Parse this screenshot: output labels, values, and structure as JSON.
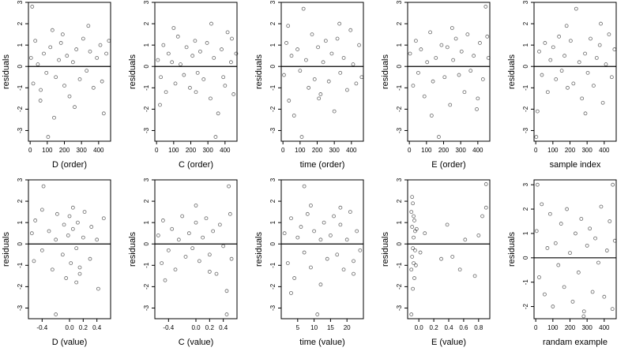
{
  "chart_data": [
    {
      "type": "scatter",
      "xlabel": "D (order)",
      "ylabel": "residuals",
      "xlim": [
        -10,
        470
      ],
      "ylim": [
        -3.5,
        3
      ],
      "x_ticks": [
        "0",
        "100",
        "200",
        "300",
        "400"
      ],
      "y_ticks": [
        "-3",
        "-2",
        "-1",
        "0",
        "1",
        "2",
        "3"
      ],
      "reference_line": 0,
      "x": [
        5,
        18,
        30,
        45,
        62,
        80,
        95,
        105,
        118,
        130,
        150,
        168,
        180,
        200,
        215,
        230,
        250,
        270,
        290,
        310,
        330,
        350,
        370,
        390,
        410,
        430,
        445,
        460,
        12,
        60,
        140,
        190,
        260,
        340,
        420
      ],
      "y": [
        0.4,
        -0.8,
        1.2,
        0.1,
        -1.1,
        0.6,
        -0.3,
        -3.3,
        0.9,
        1.7,
        -0.5,
        0.3,
        1.1,
        -0.9,
        0.5,
        -1.4,
        0.2,
        0.8,
        -0.6,
        1.3,
        -0.2,
        0.7,
        -1.0,
        0.4,
        1.0,
        -2.2,
        0.6,
        1.2,
        2.8,
        -1.6,
        -2.4,
        1.5,
        -1.9,
        1.9,
        -0.7
      ]
    },
    {
      "type": "scatter",
      "xlabel": "C (order)",
      "ylabel": "residuals",
      "xlim": [
        -10,
        470
      ],
      "ylim": [
        -3.5,
        3
      ],
      "x_ticks": [
        "0",
        "100",
        "200",
        "300",
        "400"
      ],
      "y_ticks": [
        "-3",
        "-2",
        "-1",
        "0",
        "1",
        "2",
        "3"
      ],
      "reference_line": 0,
      "x": [
        8,
        25,
        40,
        55,
        70,
        90,
        110,
        125,
        140,
        160,
        175,
        195,
        210,
        225,
        240,
        255,
        275,
        295,
        315,
        335,
        345,
        360,
        380,
        400,
        415,
        435,
        450,
        465,
        20,
        100,
        230,
        320,
        390,
        440
      ],
      "y": [
        0.3,
        -0.5,
        1.0,
        -1.2,
        0.6,
        0.2,
        -0.8,
        1.4,
        0.1,
        -0.4,
        0.9,
        -1.0,
        0.5,
        1.2,
        -0.3,
        0.7,
        -0.6,
        1.1,
        -1.5,
        0.4,
        -3.3,
        -2.2,
        0.8,
        -0.9,
        1.6,
        0.2,
        -1.3,
        0.6,
        -1.8,
        1.8,
        -1.2,
        2.0,
        -0.5,
        1.3
      ]
    },
    {
      "type": "scatter",
      "xlabel": "time (order)",
      "ylabel": "residuals",
      "xlim": [
        -10,
        470
      ],
      "ylim": [
        -3.5,
        3
      ],
      "x_ticks": [
        "0",
        "100",
        "200",
        "300",
        "400"
      ],
      "y_ticks": [
        "-3",
        "-2",
        "-1",
        "0",
        "1",
        "2",
        "3"
      ],
      "reference_line": 0,
      "x": [
        6,
        20,
        35,
        50,
        65,
        85,
        100,
        120,
        135,
        150,
        170,
        185,
        205,
        220,
        235,
        250,
        268,
        285,
        300,
        318,
        335,
        355,
        375,
        395,
        410,
        428,
        445,
        460,
        30,
        110,
        210,
        330
      ],
      "y": [
        -0.4,
        1.1,
        -1.6,
        0.5,
        -2.3,
        0.8,
        -0.2,
        2.7,
        0.3,
        -1.0,
        1.5,
        -0.6,
        0.9,
        -1.3,
        0.2,
        1.2,
        -0.7,
        0.6,
        -2.1,
        1.3,
        -0.3,
        0.4,
        -1.1,
        1.7,
        0.1,
        -0.8,
        1.0,
        -0.5,
        1.9,
        -3.3,
        -1.5,
        2.0
      ]
    },
    {
      "type": "scatter",
      "xlabel": "E (order)",
      "ylabel": "residuals",
      "xlim": [
        -10,
        470
      ],
      "ylim": [
        -3.5,
        3
      ],
      "x_ticks": [
        "0",
        "100",
        "200",
        "300",
        "400"
      ],
      "y_ticks": [
        "-3",
        "-2",
        "-1",
        "0",
        "1",
        "2",
        "3"
      ],
      "reference_line": 0,
      "x": [
        4,
        22,
        38,
        52,
        68,
        88,
        104,
        122,
        138,
        155,
        172,
        188,
        206,
        222,
        238,
        256,
        272,
        290,
        305,
        322,
        340,
        358,
        376,
        394,
        412,
        430,
        446,
        462,
        130,
        250,
        400,
        455
      ],
      "y": [
        0.6,
        -0.9,
        1.2,
        -0.3,
        0.8,
        -1.4,
        0.2,
        1.6,
        -0.7,
        0.4,
        -3.3,
        1.0,
        -0.5,
        0.9,
        -1.8,
        0.3,
        1.3,
        -0.4,
        0.7,
        -1.2,
        1.5,
        -0.2,
        0.5,
        -2.0,
        1.1,
        -0.6,
        2.8,
        0.4,
        -2.3,
        1.8,
        -1.5,
        1.4
      ]
    },
    {
      "type": "scatter",
      "xlabel": "sample index",
      "ylabel": "residuals",
      "xlim": [
        -10,
        470
      ],
      "ylim": [
        -3.5,
        3
      ],
      "x_ticks": [
        "0",
        "100",
        "200",
        "300",
        "400"
      ],
      "y_ticks": [
        "-3",
        "-2",
        "-1",
        "0",
        "1",
        "2",
        "3"
      ],
      "reference_line": 0,
      "x": [
        3,
        20,
        36,
        54,
        70,
        86,
        102,
        118,
        136,
        152,
        168,
        186,
        204,
        220,
        236,
        254,
        270,
        288,
        304,
        320,
        338,
        356,
        374,
        392,
        410,
        428,
        444,
        460,
        10,
        180,
        290,
        380
      ],
      "y": [
        -3.3,
        0.7,
        -0.4,
        1.1,
        -1.2,
        0.3,
        0.9,
        -0.6,
        1.4,
        -0.2,
        0.5,
        -1.0,
        1.2,
        -0.8,
        2.7,
        0.2,
        -1.5,
        0.6,
        -0.3,
        1.3,
        -0.9,
        0.4,
        1.0,
        -1.7,
        0.1,
        1.5,
        -0.5,
        0.8,
        -2.1,
        1.9,
        -2.2,
        2.0
      ]
    },
    {
      "type": "scatter",
      "xlabel": "D (value)",
      "ylabel": "residuals",
      "xlim": [
        -0.6,
        0.6
      ],
      "ylim": [
        -3.5,
        3
      ],
      "x_ticks": [
        "-0.4",
        "0.0",
        "0.2",
        "0.4"
      ],
      "y_ticks": [
        "-3",
        "-2",
        "-1",
        "0",
        "1",
        "2",
        "3"
      ],
      "reference_line": 0,
      "x": [
        -0.55,
        -0.52,
        -0.5,
        -0.4,
        -0.38,
        -0.3,
        -0.25,
        -0.2,
        -0.18,
        -0.1,
        -0.08,
        -0.05,
        -0.02,
        0.0,
        0.02,
        0.05,
        0.1,
        0.12,
        0.15,
        0.2,
        0.22,
        0.3,
        0.32,
        0.4,
        0.42,
        0.5,
        -0.2,
        0.1,
        -0.4,
        0.15,
        0.05
      ],
      "y": [
        0.5,
        -0.8,
        1.1,
        -0.3,
        2.7,
        0.6,
        -1.2,
        0.2,
        1.4,
        -0.5,
        0.9,
        -1.6,
        0.4,
        1.3,
        -0.9,
        0.7,
        -0.2,
        1.0,
        -1.1,
        0.3,
        1.5,
        -0.7,
        0.8,
        0.2,
        -2.1,
        1.2,
        -3.3,
        -1.8,
        1.6,
        -1.4,
        1.7
      ]
    },
    {
      "type": "scatter",
      "xlabel": "C (value)",
      "ylabel": "residuals",
      "xlim": [
        -0.6,
        0.6
      ],
      "ylim": [
        -3.5,
        3
      ],
      "x_ticks": [
        "-0.4",
        "0.0",
        "0.2",
        "0.4"
      ],
      "y_ticks": [
        "-3",
        "-2",
        "-1",
        "0",
        "1",
        "2",
        "3"
      ],
      "reference_line": 0,
      "x": [
        -0.55,
        -0.5,
        -0.48,
        -0.4,
        -0.35,
        -0.3,
        -0.25,
        -0.2,
        -0.15,
        -0.1,
        -0.05,
        0.0,
        0.05,
        0.1,
        0.15,
        0.2,
        0.25,
        0.3,
        0.35,
        0.4,
        0.45,
        0.5,
        0.52,
        -0.45,
        0.0,
        0.2,
        0.48,
        0.45
      ],
      "y": [
        0.4,
        -0.9,
        1.1,
        -0.3,
        0.7,
        -1.2,
        0.2,
        1.3,
        -0.6,
        0.5,
        -0.2,
        1.0,
        -0.8,
        0.3,
        1.2,
        -0.5,
        0.6,
        -1.4,
        0.9,
        -0.1,
        -2.2,
        1.4,
        -0.7,
        -1.7,
        1.8,
        -1.3,
        2.7,
        -3.3
      ]
    },
    {
      "type": "scatter",
      "xlabel": "time (value)",
      "ylabel": "residuals",
      "xlim": [
        0,
        25
      ],
      "ylim": [
        -3.5,
        3
      ],
      "x_ticks": [
        "5",
        "10",
        "15",
        "20"
      ],
      "y_ticks": [
        "-3",
        "-2",
        "-1",
        "0",
        "1",
        "2",
        "3"
      ],
      "reference_line": 0,
      "x": [
        1,
        2,
        3,
        4,
        5,
        6,
        7,
        8,
        9,
        10,
        11,
        12,
        13,
        14,
        15,
        16,
        17,
        18,
        19,
        20,
        21,
        22,
        23,
        24,
        3,
        7,
        12,
        18,
        22,
        9
      ],
      "y": [
        0.5,
        -0.9,
        1.2,
        -1.6,
        0.3,
        0.8,
        -0.4,
        1.4,
        -1.1,
        0.6,
        -3.3,
        0.2,
        1.0,
        -0.7,
        0.4,
        1.3,
        -0.5,
        0.9,
        -1.2,
        0.2,
        1.5,
        -0.8,
        0.6,
        -0.3,
        -2.3,
        2.7,
        -1.9,
        1.7,
        -1.4,
        1.8
      ]
    },
    {
      "type": "scatter",
      "xlabel": "E (value)",
      "ylabel": "residuals",
      "xlim": [
        -0.15,
        0.95
      ],
      "ylim": [
        -3.5,
        3
      ],
      "x_ticks": [
        "0.0",
        "0.2",
        "0.4",
        "0.6",
        "0.8"
      ],
      "y_ticks": [
        "-3",
        "-2",
        "-1",
        "0",
        "1",
        "2",
        "3"
      ],
      "reference_line": 0,
      "x": [
        -0.1,
        -0.1,
        -0.09,
        -0.09,
        -0.08,
        -0.08,
        -0.07,
        -0.07,
        -0.06,
        -0.06,
        -0.05,
        -0.05,
        -0.1,
        -0.09,
        -0.08,
        -0.07,
        -0.04,
        -0.03,
        0.02,
        0.08,
        0.3,
        0.38,
        0.55,
        0.62,
        0.75,
        0.8,
        0.9,
        0.9,
        0.85,
        0.45
      ],
      "y": [
        1.5,
        -1.2,
        0.8,
        -0.6,
        1.9,
        -2.1,
        0.3,
        -0.9,
        1.1,
        -1.6,
        0.6,
        -0.3,
        -3.3,
        2.2,
        -0.2,
        1.3,
        -1.0,
        0.7,
        -0.4,
        0.5,
        -0.7,
        0.9,
        -1.2,
        0.2,
        -1.5,
        0.4,
        2.8,
        1.7,
        1.3,
        -0.6
      ]
    },
    {
      "type": "scatter",
      "xlabel": "randam example",
      "ylabel": "residuals",
      "xlim": [
        -10,
        470
      ],
      "ylim": [
        -2.5,
        3.2
      ],
      "x_ticks": [
        "0",
        "100",
        "200",
        "300",
        "400"
      ],
      "y_ticks": [
        "-2",
        "-1",
        "0",
        "1",
        "2",
        "3"
      ],
      "reference_line": 0,
      "x": [
        5,
        20,
        35,
        52,
        68,
        84,
        100,
        116,
        132,
        148,
        166,
        182,
        200,
        216,
        232,
        250,
        266,
        282,
        300,
        316,
        332,
        348,
        366,
        382,
        400,
        416,
        432,
        448,
        462,
        10,
        280,
        450
      ],
      "y": [
        1.1,
        -0.8,
        2.2,
        -1.5,
        0.4,
        1.8,
        -2.0,
        0.6,
        -0.3,
        1.4,
        -1.2,
        2.0,
        0.2,
        -1.8,
        1.0,
        -0.6,
        1.6,
        -2.2,
        0.5,
        1.2,
        -1.4,
        0.8,
        -0.2,
        2.1,
        -1.6,
        0.3,
        1.5,
        -2.1,
        0.7,
        3.0,
        -2.4,
        3.0
      ]
    }
  ]
}
